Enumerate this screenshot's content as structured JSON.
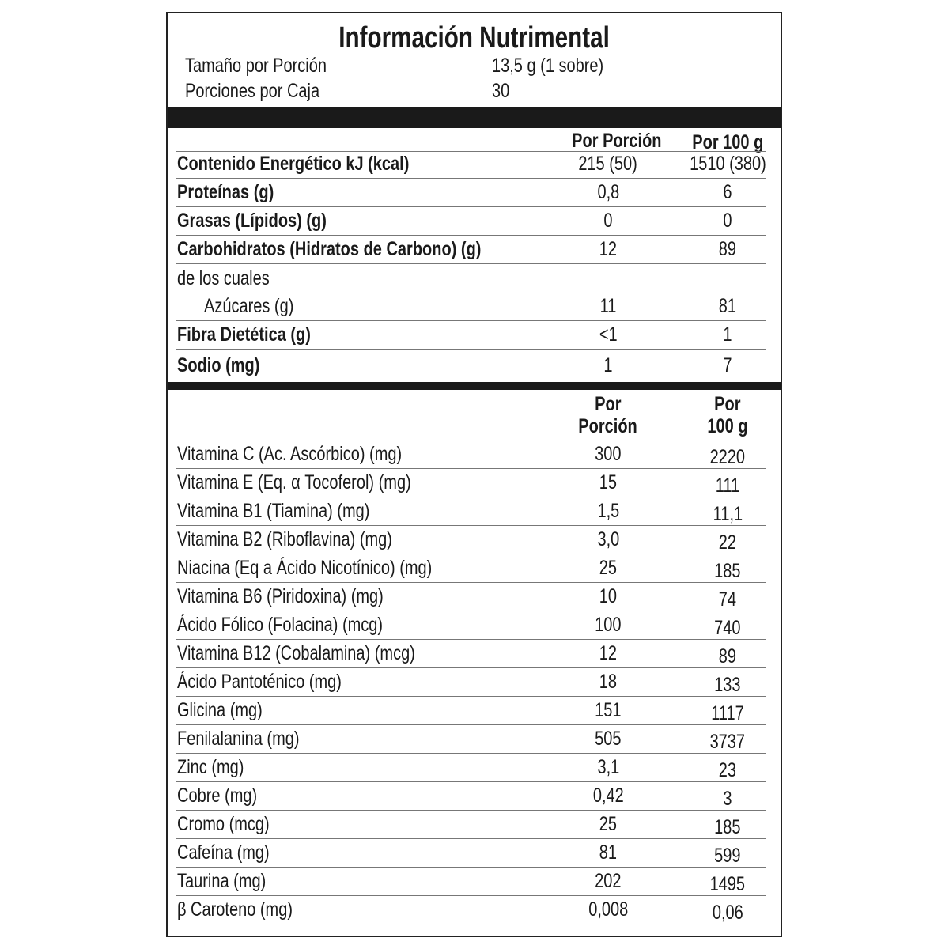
{
  "title": "Información Nutrimental",
  "serving": {
    "size_label": "Tamaño por Porción",
    "size_value": "13,5 g  (1 sobre)",
    "count_label": "Porciones por Caja",
    "count_value": "30"
  },
  "section1": {
    "col_portion": "Por Porción",
    "col_100g": "Por 100 g",
    "rows": [
      {
        "label": "Contenido Energético kJ (kcal)",
        "portion": "215 (50)",
        "per100": "1510 (380)",
        "bold": true
      },
      {
        "label": "Proteínas (g)",
        "portion": "0,8",
        "per100": "6",
        "bold": true
      },
      {
        "label": "Grasas (Lípidos) (g)",
        "portion": "0",
        "per100": "0",
        "bold": true
      },
      {
        "label": "Carbohidratos (Hidratos de Carbono) (g)",
        "portion": "12",
        "per100": "89",
        "bold": true
      },
      {
        "label": "de los cuales",
        "portion": "",
        "per100": "",
        "noline": true
      },
      {
        "label": "Azúcares (g)",
        "portion": "11",
        "per100": "81",
        "indent": true
      },
      {
        "label": "Fibra Dietética (g)",
        "portion": "<1",
        "per100": "1",
        "bold": true
      },
      {
        "label": "Sodio (mg)",
        "portion": "1",
        "per100": "7",
        "bold": true,
        "noline": true
      }
    ]
  },
  "section2": {
    "col_portion_1": "Por",
    "col_portion_2": "Porción",
    "col_100g_1": "Por",
    "col_100g_2": "100 g",
    "rows": [
      {
        "label": "Vitamina C (Ac. Ascórbico) (mg)",
        "portion": "300",
        "per100": "2220"
      },
      {
        "label": "Vitamina E (Eq. α Tocoferol) (mg)",
        "portion": "15",
        "per100": "111"
      },
      {
        "label": "Vitamina B1 (Tiamina) (mg)",
        "portion": "1,5",
        "per100": "11,1"
      },
      {
        "label": "Vitamina B2 (Riboflavina) (mg)",
        "portion": "3,0",
        "per100": "22"
      },
      {
        "label": "Niacina (Eq a Ácido Nicotínico) (mg)",
        "portion": "25",
        "per100": "185"
      },
      {
        "label": "Vitamina B6 (Piridoxina) (mg)",
        "portion": "10",
        "per100": "74"
      },
      {
        "label": "Ácido Fólico (Folacina) (mcg)",
        "portion": "100",
        "per100": "740"
      },
      {
        "label": "Vitamina B12 (Cobalamina) (mcg)",
        "portion": "12",
        "per100": "89"
      },
      {
        "label": "Ácido Pantoténico (mg)",
        "portion": "18",
        "per100": "133"
      },
      {
        "label": "Glicina (mg)",
        "portion": "151",
        "per100": "1117"
      },
      {
        "label": "Fenilalanina (mg)",
        "portion": "505",
        "per100": "3737"
      },
      {
        "label": "Zinc (mg)",
        "portion": "3,1",
        "per100": "23"
      },
      {
        "label": "Cobre (mg)",
        "portion": "0,42",
        "per100": "3"
      },
      {
        "label": "Cromo (mcg)",
        "portion": "25",
        "per100": "185"
      },
      {
        "label": "Cafeína (mg)",
        "portion": "81",
        "per100": "599"
      },
      {
        "label": "Taurina (mg)",
        "portion": "202",
        "per100": "1495"
      },
      {
        "label": "β Caroteno (mg)",
        "portion": "0,008",
        "per100": "0,06"
      }
    ]
  }
}
